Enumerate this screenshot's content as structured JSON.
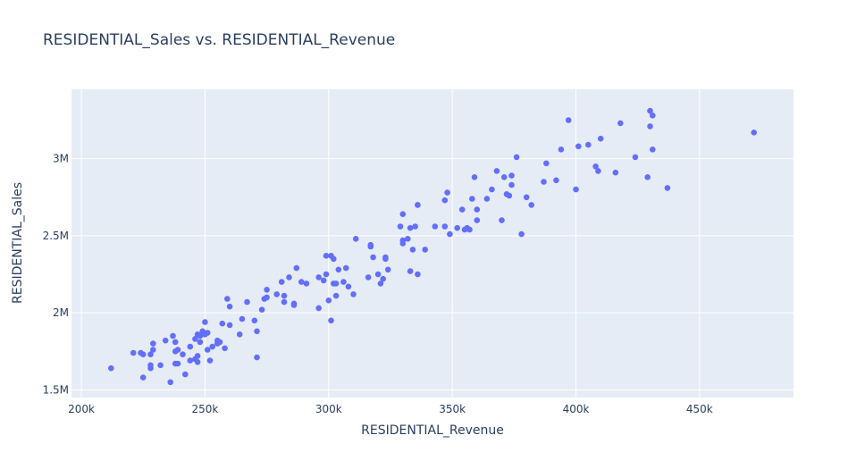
{
  "chart_data": {
    "type": "scatter",
    "title": "RESIDENTIAL_Sales vs. RESIDENTIAL_Revenue",
    "xlabel": "RESIDENTIAL_Revenue",
    "ylabel": "RESIDENTIAL_Sales",
    "xlim": [
      196000,
      488000
    ],
    "ylim": [
      1450000,
      3450000
    ],
    "x_ticks": [
      {
        "value": 200000,
        "label": "200k"
      },
      {
        "value": 250000,
        "label": "250k"
      },
      {
        "value": 300000,
        "label": "300k"
      },
      {
        "value": 350000,
        "label": "350k"
      },
      {
        "value": 400000,
        "label": "400k"
      },
      {
        "value": 450000,
        "label": "450k"
      }
    ],
    "y_ticks": [
      {
        "value": 1500000,
        "label": "1.5M"
      },
      {
        "value": 2000000,
        "label": "2M"
      },
      {
        "value": 2500000,
        "label": "2.5M"
      },
      {
        "value": 3000000,
        "label": "3M"
      }
    ],
    "grid": true,
    "marker_color": "#636efa",
    "plot_bg": "#e5ecf6",
    "points": [
      [
        212000,
        1640000
      ],
      [
        221000,
        1740000
      ],
      [
        224000,
        1740000
      ],
      [
        225000,
        1730000
      ],
      [
        225000,
        1580000
      ],
      [
        228000,
        1640000
      ],
      [
        228000,
        1660000
      ],
      [
        228000,
        1730000
      ],
      [
        229000,
        1760000
      ],
      [
        229000,
        1800000
      ],
      [
        232000,
        1660000
      ],
      [
        234000,
        1820000
      ],
      [
        236000,
        1550000
      ],
      [
        237000,
        1850000
      ],
      [
        238000,
        1810000
      ],
      [
        238000,
        1750000
      ],
      [
        238000,
        1670000
      ],
      [
        239000,
        1670000
      ],
      [
        239000,
        1760000
      ],
      [
        241000,
        1730000
      ],
      [
        242000,
        1600000
      ],
      [
        244000,
        1780000
      ],
      [
        244000,
        1690000
      ],
      [
        246000,
        1700000
      ],
      [
        246000,
        1830000
      ],
      [
        247000,
        1720000
      ],
      [
        247000,
        1680000
      ],
      [
        247000,
        1860000
      ],
      [
        248000,
        1850000
      ],
      [
        248000,
        1810000
      ],
      [
        249000,
        1870000
      ],
      [
        249000,
        1880000
      ],
      [
        250000,
        1860000
      ],
      [
        250000,
        1940000
      ],
      [
        251000,
        1870000
      ],
      [
        251000,
        1760000
      ],
      [
        252000,
        1690000
      ],
      [
        253000,
        1780000
      ],
      [
        255000,
        1800000
      ],
      [
        255000,
        1820000
      ],
      [
        256000,
        1810000
      ],
      [
        257000,
        1930000
      ],
      [
        258000,
        1770000
      ],
      [
        259000,
        2090000
      ],
      [
        260000,
        1920000
      ],
      [
        260000,
        2040000
      ],
      [
        264000,
        1860000
      ],
      [
        265000,
        1960000
      ],
      [
        267000,
        2070000
      ],
      [
        270000,
        1950000
      ],
      [
        271000,
        1880000
      ],
      [
        271000,
        1710000
      ],
      [
        273000,
        2020000
      ],
      [
        274000,
        2090000
      ],
      [
        275000,
        2100000
      ],
      [
        275000,
        2150000
      ],
      [
        279000,
        2120000
      ],
      [
        281000,
        2200000
      ],
      [
        282000,
        2070000
      ],
      [
        282000,
        2110000
      ],
      [
        284000,
        2230000
      ],
      [
        286000,
        2060000
      ],
      [
        286000,
        2050000
      ],
      [
        287000,
        2290000
      ],
      [
        289000,
        2200000
      ],
      [
        291000,
        2190000
      ],
      [
        296000,
        2230000
      ],
      [
        296000,
        2030000
      ],
      [
        298000,
        2210000
      ],
      [
        299000,
        2370000
      ],
      [
        299000,
        2250000
      ],
      [
        300000,
        2080000
      ],
      [
        301000,
        1950000
      ],
      [
        301000,
        2370000
      ],
      [
        302000,
        2350000
      ],
      [
        302000,
        2190000
      ],
      [
        303000,
        2110000
      ],
      [
        303000,
        2190000
      ],
      [
        304000,
        2280000
      ],
      [
        306000,
        2200000
      ],
      [
        307000,
        2290000
      ],
      [
        308000,
        2170000
      ],
      [
        310000,
        2120000
      ],
      [
        311000,
        2480000
      ],
      [
        316000,
        2230000
      ],
      [
        317000,
        2440000
      ],
      [
        317000,
        2430000
      ],
      [
        318000,
        2360000
      ],
      [
        320000,
        2250000
      ],
      [
        321000,
        2190000
      ],
      [
        322000,
        2220000
      ],
      [
        323000,
        2350000
      ],
      [
        323000,
        2360000
      ],
      [
        324000,
        2280000
      ],
      [
        329000,
        2560000
      ],
      [
        330000,
        2640000
      ],
      [
        330000,
        2470000
      ],
      [
        330000,
        2450000
      ],
      [
        332000,
        2480000
      ],
      [
        333000,
        2550000
      ],
      [
        333000,
        2270000
      ],
      [
        334000,
        2410000
      ],
      [
        335000,
        2560000
      ],
      [
        336000,
        2700000
      ],
      [
        336000,
        2700000
      ],
      [
        336000,
        2250000
      ],
      [
        339000,
        2410000
      ],
      [
        343000,
        2560000
      ],
      [
        347000,
        2730000
      ],
      [
        347000,
        2560000
      ],
      [
        348000,
        2780000
      ],
      [
        349000,
        2510000
      ],
      [
        352000,
        2550000
      ],
      [
        354000,
        2670000
      ],
      [
        355000,
        2540000
      ],
      [
        356000,
        2550000
      ],
      [
        357000,
        2540000
      ],
      [
        358000,
        2740000
      ],
      [
        359000,
        2880000
      ],
      [
        360000,
        2670000
      ],
      [
        360000,
        2600000
      ],
      [
        364000,
        2740000
      ],
      [
        366000,
        2800000
      ],
      [
        368000,
        2920000
      ],
      [
        370000,
        2600000
      ],
      [
        371000,
        2880000
      ],
      [
        372000,
        2770000
      ],
      [
        373000,
        2760000
      ],
      [
        374000,
        2890000
      ],
      [
        374000,
        2830000
      ],
      [
        376000,
        3010000
      ],
      [
        378000,
        2510000
      ],
      [
        380000,
        2750000
      ],
      [
        382000,
        2700000
      ],
      [
        387000,
        2850000
      ],
      [
        388000,
        2970000
      ],
      [
        392000,
        2860000
      ],
      [
        394000,
        3060000
      ],
      [
        397000,
        3250000
      ],
      [
        400000,
        2800000
      ],
      [
        401000,
        3080000
      ],
      [
        405000,
        3090000
      ],
      [
        408000,
        2950000
      ],
      [
        409000,
        2920000
      ],
      [
        410000,
        3130000
      ],
      [
        416000,
        2910000
      ],
      [
        418000,
        3230000
      ],
      [
        424000,
        3010000
      ],
      [
        429000,
        2880000
      ],
      [
        430000,
        3210000
      ],
      [
        430000,
        3310000
      ],
      [
        431000,
        3060000
      ],
      [
        431000,
        3280000
      ],
      [
        437000,
        2810000
      ],
      [
        472000,
        3170000
      ]
    ]
  }
}
